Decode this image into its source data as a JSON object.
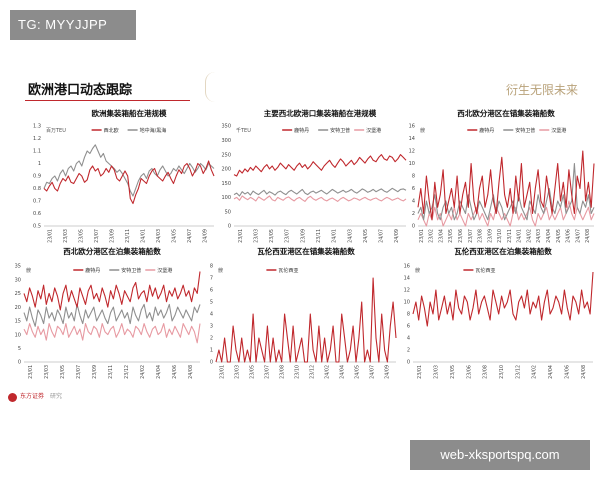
{
  "watermark_top": "TG: MYYJJPP",
  "watermark_bottom": "web-xksportspq.com",
  "slide_title": "欧洲港口动态跟踪",
  "brand_tag": "衍生无限未来",
  "footer": {
    "org": "东方证券",
    "sub": "研究"
  },
  "colors": {
    "accent": "#c0282d",
    "gray": "#8f8f8f",
    "pink": "#e79aa2"
  },
  "chart_data": [
    {
      "type": "line",
      "title": "欧洲集装箱船在港规模",
      "ylabel": "百万TEU",
      "ylim": [
        0.5,
        1.3
      ],
      "yticks": [
        0.5,
        0.6,
        0.7,
        0.8,
        0.9,
        1,
        1.1,
        1.2,
        1.3
      ],
      "xticks": [
        "23/01",
        "23/03",
        "23/05",
        "23/07",
        "23/09",
        "23/11",
        "24/01",
        "24/03",
        "24/05",
        "24/07",
        "24/09"
      ],
      "legend": [
        "西北欧",
        "地中海/黑海"
      ],
      "series": [
        {
          "name": "西北欧",
          "color": "#c0282d",
          "values": [
            0.8,
            0.78,
            0.82,
            0.85,
            0.8,
            0.78,
            0.84,
            0.88,
            0.86,
            0.9,
            0.85,
            0.84,
            0.88,
            0.92,
            0.9,
            0.85,
            0.87,
            0.95,
            0.98,
            0.94,
            0.96,
            0.9,
            0.92,
            0.96,
            0.93,
            0.98,
            0.95,
            0.88,
            0.86,
            0.9,
            0.94,
            0.9,
            0.72,
            0.68,
            0.75,
            0.8,
            0.88,
            0.86,
            0.84,
            0.9,
            0.94,
            0.96,
            0.9,
            0.88,
            0.86,
            0.9,
            0.93,
            0.88,
            0.84,
            0.9,
            0.95,
            0.92,
            0.98,
            1.0,
            0.96,
            0.9,
            0.94,
            1.0,
            0.98,
            0.92,
            0.96,
            1.02,
            0.95,
            0.9
          ]
        },
        {
          "name": "地中海/黑海",
          "color": "#8f8f8f",
          "values": [
            0.8,
            0.85,
            0.84,
            0.88,
            0.9,
            0.86,
            0.92,
            0.95,
            0.9,
            0.96,
            0.98,
            0.94,
            1.0,
            1.02,
            0.98,
            1.05,
            1.1,
            1.08,
            1.12,
            1.15,
            1.1,
            1.05,
            1.08,
            1.02,
            1.0,
            0.98,
            0.96,
            0.93,
            0.95,
            0.92,
            0.88,
            0.84,
            0.78,
            0.74,
            0.8,
            0.86,
            0.9,
            0.92,
            0.88,
            0.94,
            0.96,
            0.92,
            0.9,
            0.95,
            0.98,
            0.94,
            0.9,
            0.92,
            0.96,
            0.94,
            0.98,
            0.95,
            0.92,
            0.96,
            1.0,
            0.97,
            0.93,
            0.96,
            1.0,
            0.98,
            0.95,
            1.0,
            0.98,
            0.96
          ]
        }
      ]
    },
    {
      "type": "line",
      "title": "主要西北欧港口集装箱船在港规模",
      "ylabel": "千TEU",
      "ylim": [
        0,
        350
      ],
      "yticks": [
        0,
        50,
        100,
        150,
        200,
        250,
        300,
        350
      ],
      "xticks": [
        "23/01",
        "23/03",
        "23/05",
        "23/07",
        "23/09",
        "23/11",
        "24/01",
        "24/03",
        "24/05",
        "24/07",
        "24/09"
      ],
      "legend": [
        "鹿特丹",
        "安特卫普",
        "汉堡港"
      ],
      "series": [
        {
          "name": "鹿特丹",
          "color": "#c0282d",
          "values": [
            180,
            175,
            195,
            185,
            200,
            190,
            205,
            195,
            210,
            200,
            190,
            205,
            215,
            200,
            210,
            195,
            205,
            220,
            210,
            200,
            215,
            205,
            195,
            210,
            220,
            205,
            215,
            200,
            210,
            225,
            215,
            205,
            195,
            210,
            220,
            230,
            215,
            205,
            220,
            235,
            225,
            210,
            220,
            230,
            215,
            225,
            240,
            230,
            220,
            235,
            245,
            230,
            225,
            240,
            250,
            235,
            230,
            245,
            240,
            225,
            235,
            250,
            240,
            230
          ]
        },
        {
          "name": "安特卫普",
          "color": "#8f8f8f",
          "values": [
            110,
            115,
            105,
            120,
            112,
            118,
            108,
            122,
            115,
            110,
            118,
            125,
            112,
            120,
            115,
            108,
            118,
            122,
            115,
            110,
            120,
            125,
            118,
            112,
            120,
            128,
            115,
            110,
            118,
            122,
            115,
            120,
            125,
            118,
            112,
            120,
            128,
            122,
            115,
            120,
            125,
            118,
            122,
            128,
            120,
            115,
            122,
            130,
            125,
            118,
            122,
            128,
            120,
            125,
            130,
            122,
            118,
            125,
            132,
            126,
            120,
            128,
            130,
            125
          ]
        },
        {
          "name": "汉堡港",
          "color": "#e79aa2",
          "values": [
            95,
            100,
            90,
            105,
            98,
            92,
            100,
            95,
            88,
            102,
            96,
            90,
            98,
            105,
            92,
            88,
            100,
            95,
            90,
            98,
            102,
            94,
            88,
            96,
            100,
            92,
            86,
            98,
            104,
            95,
            90,
            96,
            100,
            92,
            88,
            94,
            98,
            92,
            86,
            95,
            100,
            94,
            88,
            92,
            98,
            95,
            90,
            96,
            100,
            94,
            90,
            95,
            98,
            92,
            88,
            95,
            100,
            96,
            90,
            94,
            98,
            92,
            88,
            95
          ]
        }
      ]
    },
    {
      "type": "line",
      "title": "西北欧分港区在锚集装箱船数",
      "ylabel": "艘",
      "ylim": [
        0,
        16
      ],
      "yticks": [
        0,
        2,
        4,
        6,
        8,
        10,
        12,
        14,
        16
      ],
      "xticks": [
        "23/01",
        "23/02",
        "23/04",
        "23/05",
        "23/06",
        "23/07",
        "23/08",
        "23/09",
        "23/10",
        "23/11",
        "24/01",
        "24/02",
        "24/03",
        "24/04",
        "24/05",
        "24/06",
        "24/07",
        "24/08"
      ],
      "legend": [
        "鹿特丹",
        "安特卫普",
        "汉堡港"
      ],
      "series": [
        {
          "name": "鹿特丹",
          "color": "#c0282d",
          "values": [
            3,
            6,
            2,
            8,
            4,
            1,
            7,
            3,
            5,
            9,
            2,
            4,
            6,
            3,
            8,
            2,
            5,
            7,
            3,
            10,
            4,
            2,
            6,
            8,
            3,
            5,
            9,
            4,
            2,
            7,
            11,
            5,
            3,
            6,
            2,
            8,
            4,
            10,
            3,
            5,
            7,
            2,
            6,
            9,
            4,
            3,
            8,
            5,
            2,
            6,
            10,
            4,
            7,
            3,
            9,
            5,
            2,
            8,
            6,
            12,
            4,
            7,
            3,
            10
          ]
        },
        {
          "name": "安特卫普",
          "color": "#8f8f8f",
          "values": [
            2,
            3,
            1,
            4,
            2,
            3,
            5,
            2,
            1,
            3,
            4,
            2,
            3,
            1,
            2,
            4,
            3,
            2,
            5,
            3,
            1,
            2,
            4,
            3,
            2,
            1,
            3,
            5,
            2,
            4,
            3,
            1,
            2,
            3,
            4,
            2,
            5,
            3,
            2,
            1,
            4,
            3,
            2,
            5,
            3,
            2,
            4,
            6,
            3,
            2,
            4,
            3,
            5,
            2,
            3,
            4,
            10,
            3,
            2,
            4,
            3,
            5,
            2,
            3
          ]
        },
        {
          "name": "汉堡港",
          "color": "#e79aa2",
          "values": [
            1,
            2,
            1,
            0,
            2,
            1,
            3,
            1,
            2,
            0,
            1,
            2,
            1,
            3,
            1,
            2,
            1,
            0,
            2,
            1,
            2,
            3,
            1,
            2,
            1,
            0,
            2,
            1,
            3,
            2,
            1,
            2,
            1,
            0,
            2,
            3,
            1,
            2,
            1,
            2,
            3,
            1,
            0,
            2,
            1,
            2,
            3,
            1,
            2,
            1,
            2,
            3,
            1,
            2,
            4,
            2,
            1,
            3,
            2,
            1,
            2,
            3,
            1,
            2
          ]
        }
      ]
    },
    {
      "type": "line",
      "title": "西北欧分港区在泊集装箱船数",
      "ylabel": "艘",
      "ylim": [
        0,
        35
      ],
      "yticks": [
        0,
        5,
        10,
        15,
        20,
        25,
        30,
        35
      ],
      "xticks": [
        "23/01",
        "23/03",
        "23/05",
        "23/07",
        "23/09",
        "23/11",
        "23/12",
        "24/02",
        "24/04",
        "24/06",
        "24/08"
      ],
      "legend": [
        "鹿特丹",
        "安特卫普",
        "汉堡港"
      ],
      "series": [
        {
          "name": "鹿特丹",
          "color": "#c0282d",
          "values": [
            25,
            22,
            27,
            24,
            20,
            26,
            23,
            28,
            21,
            25,
            22,
            27,
            24,
            19,
            25,
            28,
            22,
            26,
            23,
            20,
            27,
            24,
            21,
            26,
            28,
            23,
            25,
            22,
            27,
            24,
            20,
            26,
            23,
            28,
            25,
            21,
            26,
            24,
            22,
            27,
            29,
            23,
            25,
            26,
            22,
            28,
            24,
            27,
            23,
            25,
            28,
            22,
            26,
            24,
            27,
            23,
            25,
            28,
            24,
            26,
            22,
            27,
            25,
            33
          ]
        },
        {
          "name": "安特卫普",
          "color": "#8f8f8f",
          "values": [
            18,
            15,
            20,
            16,
            13,
            19,
            17,
            14,
            20,
            16,
            18,
            15,
            19,
            17,
            14,
            20,
            16,
            18,
            15,
            21,
            17,
            14,
            19,
            16,
            18,
            20,
            15,
            17,
            19,
            16,
            14,
            18,
            20,
            15,
            17,
            19,
            16,
            18,
            14,
            20,
            17,
            15,
            19,
            21,
            16,
            18,
            15,
            20,
            17,
            19,
            16,
            18,
            21,
            15,
            17,
            20,
            18,
            16,
            19,
            17,
            15,
            20,
            18,
            21
          ]
        },
        {
          "name": "汉堡港",
          "color": "#e79aa2",
          "values": [
            12,
            10,
            14,
            11,
            9,
            13,
            10,
            12,
            8,
            14,
            11,
            9,
            13,
            12,
            10,
            14,
            9,
            11,
            13,
            10,
            12,
            8,
            14,
            11,
            10,
            13,
            12,
            9,
            14,
            11,
            10,
            12,
            13,
            9,
            11,
            14,
            10,
            12,
            11,
            9,
            13,
            12,
            10,
            14,
            11,
            9,
            12,
            13,
            10,
            11,
            14,
            9,
            12,
            10,
            13,
            11,
            9,
            14,
            12,
            10,
            13,
            11,
            7,
            14
          ]
        }
      ]
    },
    {
      "type": "line",
      "title": "瓦伦西亚港区在锚集装箱船数",
      "ylabel": "艘",
      "ylim": [
        0,
        8
      ],
      "yticks": [
        0,
        1,
        2,
        3,
        4,
        5,
        6,
        7,
        8
      ],
      "xticks": [
        "23/01",
        "23/03",
        "23/05",
        "23/07",
        "23/08",
        "23/10",
        "23/12",
        "24/02",
        "24/04",
        "24/05",
        "24/07",
        "24/09"
      ],
      "legend": [
        "瓦伦西亚"
      ],
      "series": [
        {
          "name": "瓦伦西亚",
          "color": "#c0282d",
          "values": [
            0,
            1,
            0,
            2,
            0,
            0,
            3,
            1,
            0,
            2,
            0,
            1,
            0,
            4,
            0,
            2,
            1,
            0,
            3,
            0,
            2,
            0,
            1,
            0,
            4,
            2,
            0,
            3,
            0,
            1,
            2,
            0,
            0,
            4,
            1,
            0,
            3,
            0,
            2,
            0,
            1,
            3,
            0,
            0,
            4,
            2,
            0,
            1,
            3,
            0,
            2,
            5,
            0,
            1,
            0,
            7,
            2,
            0,
            4,
            1,
            0,
            3,
            5,
            2
          ]
        }
      ]
    },
    {
      "type": "line",
      "title": "瓦伦西亚港区在泊集装箱船数",
      "ylabel": "艘",
      "ylim": [
        0,
        16
      ],
      "yticks": [
        0,
        2,
        4,
        6,
        8,
        10,
        12,
        14,
        16
      ],
      "xticks": [
        "23/01",
        "23/03",
        "23/05",
        "23/06",
        "23/08",
        "23/10",
        "23/12",
        "24/02",
        "24/04",
        "24/06",
        "24/08"
      ],
      "legend": [
        "瓦伦西亚"
      ],
      "series": [
        {
          "name": "瓦伦西亚",
          "color": "#c0282d",
          "values": [
            8,
            10,
            7,
            11,
            9,
            6,
            10,
            8,
            12,
            7,
            9,
            11,
            8,
            10,
            7,
            12,
            9,
            8,
            11,
            10,
            7,
            9,
            12,
            8,
            10,
            11,
            9,
            7,
            12,
            10,
            8,
            11,
            9,
            10,
            12,
            8,
            7,
            10,
            11,
            9,
            12,
            8,
            10,
            9,
            11,
            7,
            10,
            12,
            8,
            9,
            11,
            10,
            8,
            12,
            9,
            7,
            11,
            10,
            8,
            12,
            9,
            10,
            8,
            15
          ]
        }
      ]
    }
  ]
}
